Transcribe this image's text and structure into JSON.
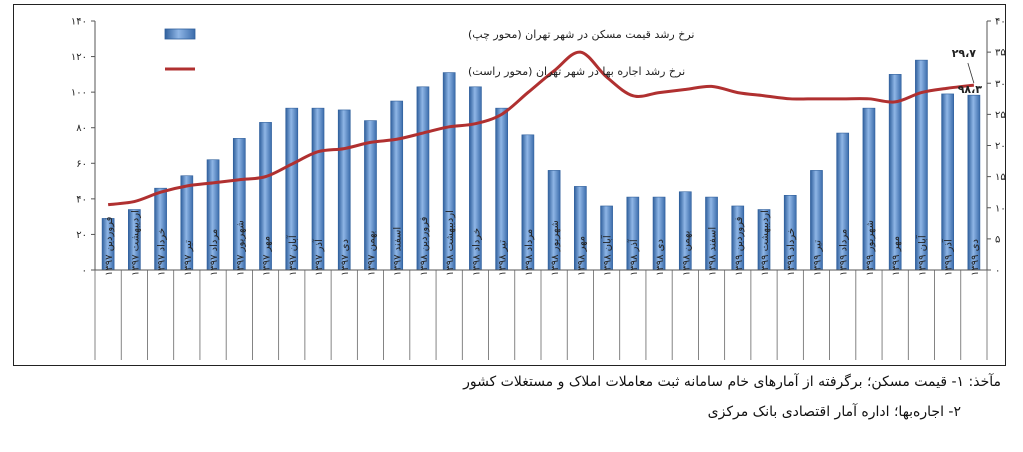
{
  "chart_data": {
    "type": "bar",
    "title": "",
    "xlabel": "",
    "ylabel": "",
    "categories": [
      "فروردین ۱۳۹۷",
      "اردیبهشت ۱۳۹۷",
      "خرداد ۱۳۹۷",
      "تیر ۱۳۹۷",
      "مرداد ۱۳۹۷",
      "شهریور ۱۳۹۷",
      "مهر ۱۳۹۷",
      "آبان ۱۳۹۷",
      "آذر ۱۳۹۷",
      "دی ۱۳۹۷",
      "بهمن ۱۳۹۷",
      "اسفند ۱۳۹۷",
      "فروردین ۱۳۹۸",
      "اردیبهشت ۱۳۹۸",
      "خرداد ۱۳۹۸",
      "تیر ۱۳۹۸",
      "مرداد ۱۳۹۸",
      "شهریور ۱۳۹۸",
      "مهر ۱۳۹۸",
      "آبان ۱۳۹۸",
      "آذر ۱۳۹۸",
      "دی ۱۳۹۸",
      "بهمن ۱۳۹۸",
      "اسفند ۱۳۹۸",
      "فروردین ۱۳۹۹",
      "اردیبهشت ۱۳۹۹",
      "خرداد ۱۳۹۹",
      "تیر ۱۳۹۹",
      "مرداد ۱۳۹۹",
      "شهریور ۱۳۹۹",
      "مهر ۱۳۹۹",
      "آبان ۱۳۹۹",
      "آذر ۱۳۹۹",
      "دی ۱۳۹۹"
    ],
    "series": [
      {
        "name": "نرخ رشد قیمت مسکن در شهر تهران (محور چپ)",
        "type": "bar",
        "axis": "left",
        "color": "#4a7fc1",
        "values": [
          29,
          34,
          46,
          53,
          62,
          74,
          83,
          91,
          91,
          90,
          84,
          95,
          103,
          111,
          103,
          91,
          76,
          56,
          47,
          36,
          41,
          41,
          44,
          41,
          36,
          34,
          42,
          56,
          77,
          91,
          110,
          118,
          99,
          98.3
        ]
      },
      {
        "name": "نرخ رشد اجاره بها در شهر تهران (محور راست)",
        "type": "line",
        "axis": "right",
        "color": "#b03030",
        "values": [
          10.5,
          11,
          12.5,
          13.5,
          14,
          14.5,
          15,
          17,
          19,
          19.5,
          20.5,
          21,
          22,
          23,
          23.5,
          25,
          28.5,
          32,
          35,
          31,
          28,
          28.5,
          29,
          29.5,
          28.5,
          28,
          27.5,
          27.5,
          27.5,
          27.5,
          27,
          28.5,
          29.2,
          29.7
        ]
      }
    ],
    "y_left": {
      "min": 0,
      "max": 140,
      "step": 20,
      "tick_labels": [
        "۰",
        "۲۰",
        "۴۰",
        "۶۰",
        "۸۰",
        "۱۰۰",
        "۱۲۰",
        "۱۴۰"
      ]
    },
    "y_right": {
      "min": 0,
      "max": 40,
      "step": 5,
      "tick_labels": [
        "۰",
        "۵",
        "۱۰",
        "۱۵",
        "۲۰",
        "۲۵",
        "۳۰",
        "۳۵",
        "۴۰"
      ]
    },
    "annotations": [
      {
        "text": "۲۹،۷",
        "series": 1,
        "index": 33
      },
      {
        "text": "۹۸،۳",
        "series": 0,
        "index": 33
      }
    ],
    "legend": {
      "position": "top-left"
    },
    "grid": false
  },
  "source": {
    "line1": "مآخذ: ۱- قیمت مسکن؛ برگرفته از آمارهای خام سامانه ثبت معاملات املاک و مستغلات کشور",
    "line2": "۲- اجاره‌بها؛ اداره آمار اقتصادی بانک مرکزی"
  }
}
